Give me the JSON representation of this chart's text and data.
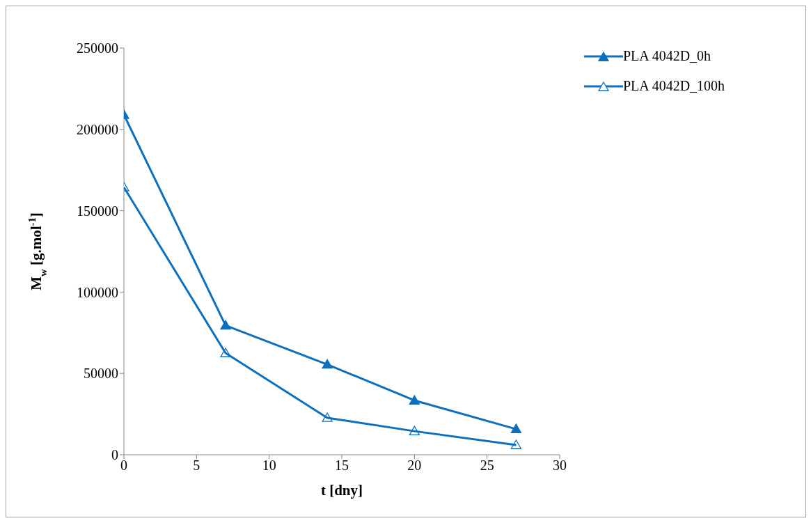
{
  "chart_data": {
    "type": "line",
    "xlabel": "t [dny]",
    "ylabel": "M$_{w}$ [g.mol$^{-1}$]",
    "x": [
      0,
      7,
      14,
      20,
      27
    ],
    "series": [
      {
        "name": "PLA 4042D_0h",
        "color": "#0e6fbd",
        "values": [
          209000,
          79500,
          55500,
          33400,
          15800
        ]
      },
      {
        "name": "PLA 4042D_100h",
        "color": "#0e6fbd",
        "values": [
          164400,
          62500,
          22700,
          14500,
          6000
        ]
      }
    ],
    "xlim": [
      0,
      30
    ],
    "xticks": [
      0,
      5,
      10,
      15,
      20,
      25,
      30
    ],
    "ylim": [
      0,
      250000
    ],
    "yticks": [
      0,
      50000,
      100000,
      150000,
      200000,
      250000
    ],
    "grid": false,
    "legend": "top right",
    "marker": "triangle",
    "line_style": "solid"
  }
}
